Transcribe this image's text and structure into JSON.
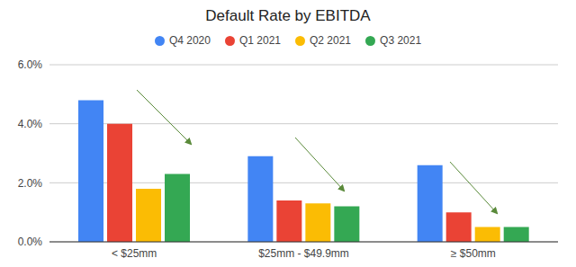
{
  "chart_data": {
    "type": "bar",
    "title": "Default Rate by EBITDA",
    "categories": [
      "< $25mm",
      "$25mm - $49.9mm",
      "≥ $50mm"
    ],
    "series": [
      {
        "name": "Q4 2020",
        "color": "#4285f4",
        "values": [
          4.8,
          2.9,
          2.6
        ]
      },
      {
        "name": "Q1 2021",
        "color": "#ea4335",
        "values": [
          4.0,
          1.4,
          1.0
        ]
      },
      {
        "name": "Q2 2021",
        "color": "#fbbc04",
        "values": [
          1.8,
          1.3,
          0.5
        ]
      },
      {
        "name": "Q3 2021",
        "color": "#34a853",
        "values": [
          2.3,
          1.2,
          0.5
        ]
      }
    ],
    "ylim": [
      0,
      6
    ],
    "yticks": [
      {
        "value": 0,
        "label": "0.0%"
      },
      {
        "value": 2,
        "label": "2.0%"
      },
      {
        "value": 4,
        "label": "4.0%"
      },
      {
        "value": 6,
        "label": "6.0%"
      }
    ],
    "grid": true,
    "legend": "top"
  }
}
